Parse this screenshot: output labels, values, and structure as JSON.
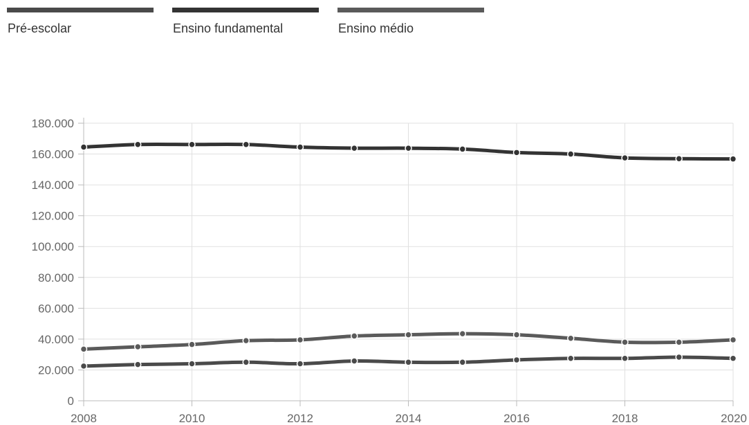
{
  "legend": {
    "items": [
      {
        "label": "Pré-escolar",
        "color": "#4a4a4a"
      },
      {
        "label": "Ensino fundamental",
        "color": "#333333"
      },
      {
        "label": "Ensino médio",
        "color": "#5a5a5a"
      }
    ]
  },
  "chart_data": {
    "type": "line",
    "title": "",
    "xlabel": "",
    "ylabel": "",
    "x": [
      2008,
      2009,
      2010,
      2011,
      2012,
      2013,
      2014,
      2015,
      2016,
      2017,
      2018,
      2019,
      2020
    ],
    "x_tick_labels": [
      "2008",
      "2010",
      "2012",
      "2014",
      "2016",
      "2018",
      "2020"
    ],
    "x_tick_values": [
      2008,
      2010,
      2012,
      2014,
      2016,
      2018,
      2020
    ],
    "y_tick_labels": [
      "0",
      "20.000",
      "40.000",
      "60.000",
      "80.000",
      "100.000",
      "120.000",
      "140.000",
      "160.000",
      "180.000"
    ],
    "y_tick_values": [
      0,
      20000,
      40000,
      60000,
      80000,
      100000,
      120000,
      140000,
      160000,
      180000
    ],
    "xlim": [
      2008,
      2020
    ],
    "ylim": [
      0,
      180000
    ],
    "grid": true,
    "legend_position": "top",
    "series": [
      {
        "name": "Pré-escolar",
        "color": "#4a4a4a",
        "values": [
          22500,
          23500,
          24000,
          25000,
          24000,
          25800,
          25000,
          25000,
          26500,
          27500,
          27500,
          28300,
          27500
        ]
      },
      {
        "name": "Ensino fundamental",
        "color": "#333333",
        "values": [
          164500,
          166200,
          166200,
          166200,
          164500,
          163800,
          163800,
          163200,
          161000,
          160000,
          157500,
          157000,
          156800
        ]
      },
      {
        "name": "Ensino médio",
        "color": "#5a5a5a",
        "values": [
          33500,
          35000,
          36500,
          39000,
          39500,
          42000,
          42800,
          43500,
          42800,
          40500,
          38000,
          38000,
          39500
        ]
      }
    ]
  }
}
